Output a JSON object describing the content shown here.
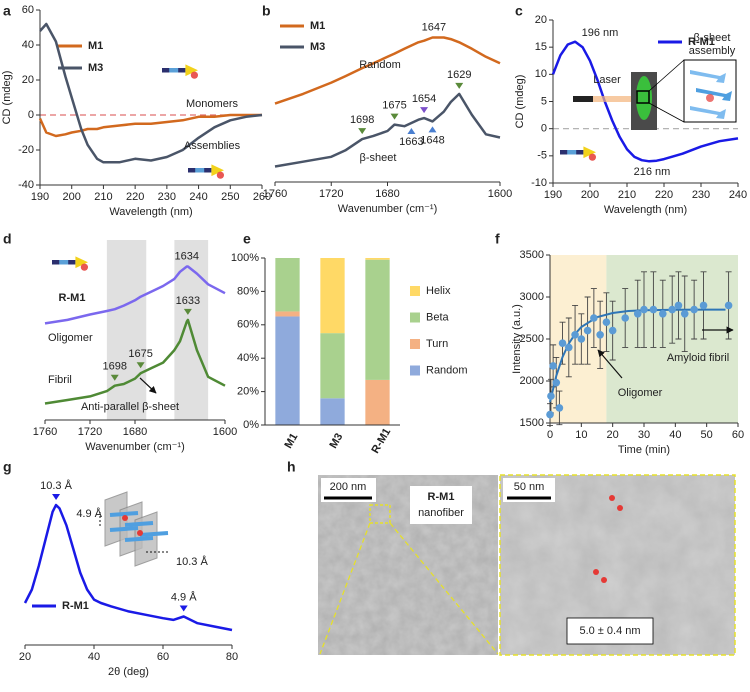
{
  "chart_data": [
    {
      "label": "a",
      "type": "line",
      "x_label": "Wavelength (nm)",
      "y_label": "CD (mdeg)",
      "x": [
        190,
        192,
        195,
        198,
        200,
        203,
        205,
        208,
        210,
        215,
        220,
        225,
        230,
        235,
        240,
        245,
        250,
        255,
        260
      ],
      "series": [
        {
          "name": "M1",
          "color": "#d2691e",
          "values": [
            -2,
            -10,
            -12,
            -11,
            -10,
            -9,
            -8,
            -8,
            -7,
            -6,
            -5,
            -5,
            -4,
            -3,
            -1,
            -1,
            0,
            0,
            0
          ]
        },
        {
          "name": "M3",
          "color": "#4a5568",
          "values": [
            48,
            52,
            42,
            22,
            10,
            -8,
            -17,
            -25,
            -27,
            -27,
            -25,
            -26,
            -24,
            -20,
            -13,
            -7,
            -3,
            -1,
            0
          ]
        }
      ],
      "xlim": [
        190,
        260
      ],
      "xticks": [
        190,
        200,
        210,
        220,
        230,
        240,
        250,
        260
      ],
      "ylim": [
        -40,
        60
      ],
      "yticks": [
        -40,
        -20,
        0,
        20,
        40,
        60
      ],
      "zero_line_color": "#e07070",
      "legend": "upper left",
      "annotations": [
        "Monomers",
        "Assemblies"
      ]
    },
    {
      "label": "b",
      "type": "line",
      "x_label": "Wavenumber (cm⁻¹)",
      "x": [
        1760,
        1740,
        1720,
        1710,
        1698,
        1690,
        1680,
        1675,
        1668,
        1663,
        1658,
        1654,
        1648,
        1640,
        1635,
        1629,
        1620,
        1610,
        1600
      ],
      "series": [
        {
          "name": "M1",
          "color": "#d2691e",
          "values": [
            0.49,
            0.55,
            0.62,
            0.66,
            0.71,
            0.74,
            0.78,
            0.8,
            0.83,
            0.85,
            0.87,
            0.88,
            0.9,
            0.9,
            0.89,
            0.87,
            0.83,
            0.78,
            0.74
          ],
          "peaks": [
            {
              "value": 1647
            }
          ]
        },
        {
          "name": "M3",
          "color": "#4a5568",
          "values": [
            0.1,
            0.13,
            0.16,
            0.2,
            0.27,
            0.29,
            0.32,
            0.36,
            0.35,
            0.37,
            0.39,
            0.4,
            0.38,
            0.44,
            0.5,
            0.55,
            0.42,
            0.3,
            0.28
          ],
          "peaks": [
            {
              "value": 1698,
              "color": "#5a8a3a",
              "side": "above"
            },
            {
              "value": 1675,
              "color": "#5a8a3a",
              "side": "above"
            },
            {
              "value": 1654,
              "color": "#7b4fc9",
              "side": "above"
            },
            {
              "value": 1663,
              "color": "#4a7fd0",
              "side": "below"
            },
            {
              "value": 1648,
              "color": "#4a7fd0",
              "side": "below"
            },
            {
              "value": 1629,
              "color": "#5a8a3a",
              "side": "above"
            }
          ]
        }
      ],
      "xlim": [
        1760,
        1600
      ],
      "xticks": [
        1760,
        1720,
        1680,
        1600
      ],
      "legend": "upper left",
      "annotations": [
        "Random",
        "β-sheet"
      ]
    },
    {
      "label": "c",
      "type": "line",
      "x_label": "Wavelength (nm)",
      "y_label": "CD (mdeg)",
      "x": [
        190,
        192,
        194,
        196,
        198,
        200,
        202,
        204,
        206,
        208,
        210,
        212,
        214,
        216,
        218,
        220,
        225,
        230,
        235,
        240
      ],
      "series": [
        {
          "name": "R-M1",
          "color": "#1a1ae6",
          "values": [
            10,
            13.5,
            15.5,
            16,
            15,
            12.5,
            9,
            5,
            1.5,
            -1.5,
            -3.8,
            -5.2,
            -5.8,
            -6,
            -5.9,
            -5.6,
            -4.6,
            -3.3,
            -2.3,
            -1.8
          ]
        }
      ],
      "xlim": [
        190,
        240
      ],
      "xticks": [
        190,
        200,
        210,
        220,
        230,
        240
      ],
      "ylim": [
        -10,
        20
      ],
      "yticks": [
        -10,
        -5,
        0,
        5,
        10,
        15,
        20
      ],
      "zero_line_color": "#aaaaaa",
      "legend": "upper right",
      "annotations": [
        "196 nm",
        "216 nm",
        "Laser"
      ],
      "inset_label": [
        "β-sheet",
        "assembly"
      ]
    },
    {
      "label": "d",
      "type": "line",
      "x_label": "Wavenumber (cm⁻¹)",
      "x": [
        1760,
        1740,
        1720,
        1705,
        1698,
        1690,
        1680,
        1675,
        1665,
        1655,
        1645,
        1640,
        1634,
        1633,
        1625,
        1615,
        1600
      ],
      "series": [
        {
          "name": "Oligomer",
          "color": "#7b68ee",
          "values": [
            0.55,
            0.57,
            0.6,
            0.62,
            0.63,
            0.65,
            0.68,
            0.7,
            0.73,
            0.76,
            0.8,
            0.84,
            0.87,
            0.87,
            0.83,
            0.77,
            0.72
          ],
          "peaks": [
            {
              "value": 1634
            }
          ]
        },
        {
          "name": "Fibril",
          "color": "#4f8a35",
          "values": [
            0.1,
            0.12,
            0.14,
            0.17,
            0.2,
            0.21,
            0.24,
            0.27,
            0.3,
            0.33,
            0.4,
            0.45,
            0.56,
            0.57,
            0.4,
            0.25,
            0.2
          ],
          "peaks": [
            {
              "value": 1698,
              "color": "#5a8a3a",
              "side": "above"
            },
            {
              "value": 1675,
              "color": "#5a8a3a",
              "side": "above"
            },
            {
              "value": 1633,
              "color": "#5a8a3a",
              "side": "above"
            }
          ]
        }
      ],
      "xlim": [
        1760,
        1600
      ],
      "xticks": [
        1760,
        1720,
        1680,
        1600
      ],
      "bands": [
        [
          1705,
          1670
        ],
        [
          1645,
          1615
        ]
      ],
      "band_color": "#e0e0e0",
      "legend": "inline",
      "annotations": [
        "R-M1",
        "Anti-parallel β-sheet"
      ]
    },
    {
      "label": "e",
      "type": "stacked_bar",
      "categories": [
        "M1",
        "M3",
        "R-M1"
      ],
      "series": [
        {
          "name": "Random",
          "color": "#8faadc",
          "values": [
            65,
            16,
            0
          ]
        },
        {
          "name": "Turn",
          "color": "#f4b183",
          "values": [
            3,
            0,
            27
          ]
        },
        {
          "name": "Beta",
          "color": "#a9d18e",
          "values": [
            32,
            39,
            72
          ]
        },
        {
          "name": "Helix",
          "color": "#ffd966",
          "values": [
            0,
            45,
            1
          ]
        }
      ],
      "ylim": [
        0,
        100
      ],
      "yticks": [
        {
          "value": 0,
          "label": "0%"
        },
        {
          "value": 20,
          "label": "20%"
        },
        {
          "value": 40,
          "label": "40%"
        },
        {
          "value": 60,
          "label": "60%"
        },
        {
          "value": 80,
          "label": "80%"
        },
        {
          "value": 100,
          "label": "100%"
        }
      ],
      "legend": "right"
    },
    {
      "label": "f",
      "type": "scatter",
      "x_label": "Time (min)",
      "y_label": "Intensity (a.u.)",
      "color": "#5b9bd5",
      "x": [
        0,
        0.3,
        1,
        2,
        3,
        4,
        6,
        8,
        10,
        12,
        14,
        16,
        18,
        20,
        24,
        28,
        30,
        33,
        36,
        39,
        41,
        43,
        46,
        49,
        57
      ],
      "values": [
        1600,
        1820,
        2180,
        1980,
        1680,
        2450,
        2400,
        2550,
        2500,
        2600,
        2750,
        2550,
        2700,
        2600,
        2750,
        2800,
        2850,
        2850,
        2800,
        2850,
        2900,
        2800,
        2850,
        2900,
        2900
      ],
      "errors": [
        130,
        200,
        250,
        300,
        200,
        250,
        350,
        350,
        300,
        400,
        350,
        400,
        350,
        350,
        350,
        400,
        450,
        450,
        400,
        400,
        400,
        450,
        350,
        400,
        400
      ],
      "fit": {
        "color": "#2e75b6",
        "x": [
          0,
          2,
          4,
          6,
          8,
          10,
          15,
          20,
          25,
          30,
          40,
          50,
          56
        ],
        "values": [
          1750,
          2062,
          2285,
          2445,
          2560,
          2643,
          2760,
          2810,
          2833,
          2843,
          2849,
          2850,
          2850
        ]
      },
      "regions": [
        {
          "x": [
            0,
            18
          ],
          "color": "#fcefd2"
        },
        {
          "x": [
            18,
            60
          ],
          "color": "#dbe8cf"
        }
      ],
      "xlim": [
        0,
        60
      ],
      "xticks": [
        0,
        10,
        20,
        30,
        40,
        50,
        60
      ],
      "ylim": [
        1500,
        3500
      ],
      "yticks": [
        1500,
        2000,
        2500,
        3000,
        3500
      ],
      "annotations": [
        "Oligomer",
        "Amyloid fibril"
      ]
    },
    {
      "label": "g",
      "type": "line",
      "x_label": "2θ (deg)",
      "x": [
        20,
        22,
        24,
        26,
        28,
        29,
        30,
        32,
        34,
        36,
        38,
        40,
        42,
        45,
        50,
        55,
        60,
        63,
        66,
        68,
        70,
        75,
        80
      ],
      "series": [
        {
          "name": "R-M1",
          "color": "#1a1ae6",
          "values": [
            30,
            38,
            52,
            68,
            84,
            88,
            86,
            76,
            62,
            48,
            38,
            32,
            30,
            28,
            25,
            23,
            21,
            20,
            22,
            20,
            18,
            16,
            14
          ],
          "peaks": [
            {
              "value": 29,
              "label": "10.3 Å",
              "color": "#1a1ae6",
              "side": "above"
            },
            {
              "value": 66,
              "label": "4.9 Å",
              "color": "#1a1ae6",
              "side": "above"
            }
          ]
        }
      ],
      "xlim": [
        20,
        80
      ],
      "xticks": [
        20,
        40,
        60,
        80
      ],
      "legend": "lower left",
      "inset_labels": [
        "4.9 Å",
        "10.3 Å"
      ]
    }
  ],
  "panel_h": {
    "label": "h",
    "scale_bars": [
      "200 nm",
      "50 nm"
    ],
    "sample": [
      "R-M1",
      "nanofiber"
    ],
    "width_label": "5.0 ± 0.4 nm"
  }
}
